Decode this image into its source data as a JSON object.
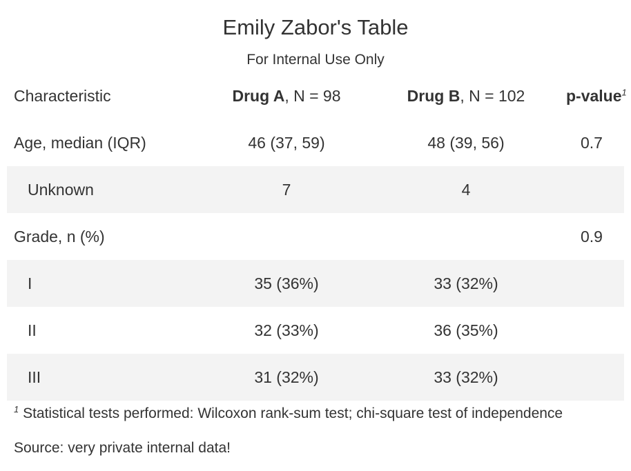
{
  "title": "Emily Zabor's Table",
  "subtitle": "For Internal Use Only",
  "header": {
    "characteristic": "Characteristic",
    "drug_a_name": "Drug A",
    "drug_a_n": ", N = 98",
    "drug_b_name": "Drug B",
    "drug_b_n": ", N = 102",
    "p_value": "p-value",
    "p_value_footnote_mark": "1"
  },
  "rows": [
    {
      "label": "Age, median (IQR)",
      "drug_a": "46 (37, 59)",
      "drug_b": "48 (39, 56)",
      "p_value": "0.7"
    },
    {
      "label": "Unknown",
      "drug_a": "7",
      "drug_b": "4",
      "p_value": ""
    },
    {
      "label": "Grade, n (%)",
      "drug_a": "",
      "drug_b": "",
      "p_value": "0.9"
    },
    {
      "label": "I",
      "drug_a": "35 (36%)",
      "drug_b": "33 (32%)",
      "p_value": ""
    },
    {
      "label": "II",
      "drug_a": "32 (33%)",
      "drug_b": "36 (35%)",
      "p_value": ""
    },
    {
      "label": "III",
      "drug_a": "31 (32%)",
      "drug_b": "33 (32%)",
      "p_value": ""
    }
  ],
  "footnote": {
    "mark": "1",
    "text": "Statistical tests performed: Wilcoxon rank-sum test; chi-square test of independence"
  },
  "source_note": "Source: very private internal data!"
}
